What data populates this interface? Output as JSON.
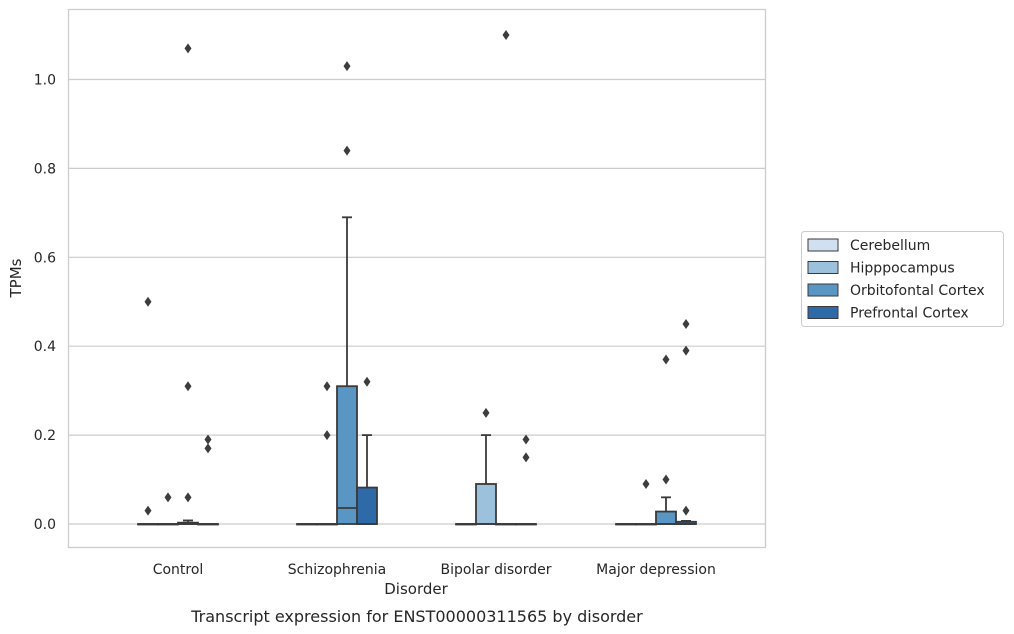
{
  "chart_data": {
    "type": "box",
    "caption": "Transcript expression for ENST00000311565 by disorder",
    "xlabel": "Disorder",
    "ylabel": "TPMs",
    "ylim": [
      -0.053,
      1.165
    ],
    "yticks": [
      0.0,
      0.2,
      0.4,
      0.6,
      0.8,
      1.0
    ],
    "ytick_labels": [
      "0.0",
      "0.2",
      "0.4",
      "0.6",
      "0.8",
      "1.0"
    ],
    "grid": true,
    "legend_position": "right",
    "categories": [
      "Control",
      "Schizophrenia",
      "Bipolar disorder",
      "Major depression"
    ],
    "series": [
      {
        "name": "Cerebellum",
        "color": "#d0e0f0",
        "boxes": [
          {
            "q1": 0,
            "median": 0,
            "q3": 0,
            "whisker_low": 0,
            "whisker_high": 0,
            "outliers": [
              0.03,
              0.5
            ]
          },
          {
            "q1": 0,
            "median": 0,
            "q3": 0,
            "whisker_low": 0,
            "whisker_high": 0,
            "outliers": []
          },
          {
            "q1": 0,
            "median": 0,
            "q3": 0,
            "whisker_low": 0,
            "whisker_high": 0,
            "outliers": []
          },
          {
            "q1": 0,
            "median": 0,
            "q3": 0,
            "whisker_low": 0,
            "whisker_high": 0,
            "outliers": []
          }
        ]
      },
      {
        "name": "Hipppocampus",
        "color": "#9cc1dc",
        "boxes": [
          {
            "q1": 0,
            "median": 0,
            "q3": 0,
            "whisker_low": 0,
            "whisker_high": 0,
            "outliers": [
              0.06
            ]
          },
          {
            "q1": 0,
            "median": 0,
            "q3": 0,
            "whisker_low": 0,
            "whisker_high": 0,
            "outliers": [
              0.2,
              0.31
            ]
          },
          {
            "q1": 0,
            "median": 0,
            "q3": 0.09,
            "whisker_low": 0,
            "whisker_high": 0.2,
            "outliers": [
              0.25
            ]
          },
          {
            "q1": 0,
            "median": 0,
            "q3": 0,
            "whisker_low": 0,
            "whisker_high": 0,
            "outliers": [
              0.09
            ]
          }
        ]
      },
      {
        "name": "Orbitofontal Cortex",
        "color": "#5996c4",
        "boxes": [
          {
            "q1": 0,
            "median": 0,
            "q3": 0.003,
            "whisker_low": 0,
            "whisker_high": 0.008,
            "outliers": [
              0.06,
              0.31,
              1.07
            ]
          },
          {
            "q1": 0,
            "median": 0.036,
            "q3": 0.31,
            "whisker_low": 0,
            "whisker_high": 0.69,
            "outliers": [
              0.84,
              1.03
            ]
          },
          {
            "q1": 0,
            "median": 0,
            "q3": 0,
            "whisker_low": 0,
            "whisker_high": 0,
            "outliers": [
              1.1
            ]
          },
          {
            "q1": 0,
            "median": 0,
            "q3": 0.028,
            "whisker_low": 0,
            "whisker_high": 0.06,
            "outliers": [
              0.1,
              0.37
            ]
          }
        ]
      },
      {
        "name": "Prefrontal Cortex",
        "color": "#2f6aa8",
        "boxes": [
          {
            "q1": 0,
            "median": 0,
            "q3": 0,
            "whisker_low": 0,
            "whisker_high": 0,
            "outliers": [
              0.17,
              0.19
            ]
          },
          {
            "q1": 0,
            "median": 0,
            "q3": 0.082,
            "whisker_low": 0,
            "whisker_high": 0.2,
            "outliers": [
              0.32
            ]
          },
          {
            "q1": 0,
            "median": 0,
            "q3": 0,
            "whisker_low": 0,
            "whisker_high": 0,
            "outliers": [
              0.15,
              0.19
            ]
          },
          {
            "q1": 0,
            "median": 0,
            "q3": 0.005,
            "whisker_low": 0,
            "whisker_high": 0.007,
            "outliers": [
              0.03,
              0.39,
              0.45
            ]
          }
        ]
      }
    ]
  }
}
